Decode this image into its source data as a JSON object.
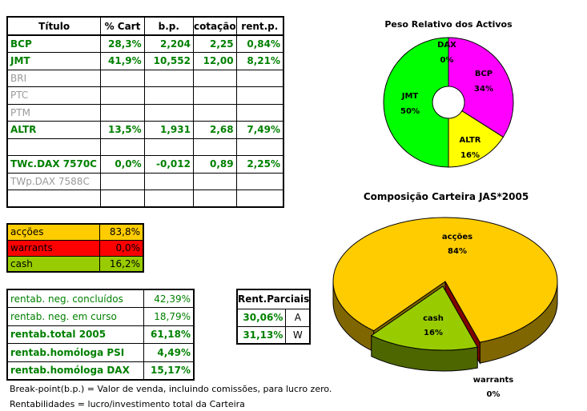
{
  "holdings": {
    "headers": [
      "Título",
      "% Cart",
      "b.p.",
      "cotação",
      "rent.p."
    ],
    "rows": [
      {
        "title": "BCP",
        "pct": "28,3%",
        "bp": "2,204",
        "price": "2,25",
        "rent": "0,84%",
        "style": "active"
      },
      {
        "title": "JMT",
        "pct": "41,9%",
        "bp": "10,552",
        "price": "12,00",
        "rent": "8,21%",
        "style": "active"
      },
      {
        "title": "BRI",
        "pct": "",
        "bp": "",
        "price": "",
        "rent": "",
        "style": "inactive"
      },
      {
        "title": "PTC",
        "pct": "",
        "bp": "",
        "price": "",
        "rent": "",
        "style": "inactive"
      },
      {
        "title": "PTM",
        "pct": "",
        "bp": "",
        "price": "",
        "rent": "",
        "style": "inactive"
      },
      {
        "title": "ALTR",
        "pct": "13,5%",
        "bp": "1,931",
        "price": "2,68",
        "rent": "7,49%",
        "style": "active"
      },
      {
        "title": "",
        "pct": "",
        "bp": "",
        "price": "",
        "rent": "",
        "style": "empty"
      },
      {
        "title": "TWc.DAX 7570C",
        "pct": "0,0%",
        "bp": "-0,012",
        "price": "0,89",
        "rent": "2,25%",
        "style": "active"
      },
      {
        "title": "TWp.DAX 7588C",
        "pct": "",
        "bp": "",
        "price": "",
        "rent": "",
        "style": "inactive"
      },
      {
        "title": "",
        "pct": "",
        "bp": "",
        "price": "",
        "rent": "",
        "style": "empty"
      }
    ]
  },
  "allocation": [
    {
      "label": "acções",
      "value": "83,8%",
      "color": "#ffcc00"
    },
    {
      "label": "warrants",
      "value": "0,0%",
      "color": "#ff0000"
    },
    {
      "label": "cash",
      "value": "16,2%",
      "color": "#99cc00"
    }
  ],
  "returns": [
    {
      "label": "rentab. neg. concluídos",
      "value": "42,39%",
      "bold": false
    },
    {
      "label": "rentab. neg. em curso",
      "value": "18,79%",
      "bold": false
    },
    {
      "label": "rentab.total 2005",
      "value": "61,18%",
      "bold": true
    },
    {
      "label": "rentab.homóloga PSI",
      "value": "4,49%",
      "bold": true
    },
    {
      "label": "rentab.homóloga DAX",
      "value": "15,17%",
      "bold": true
    }
  ],
  "partial": {
    "title": "Rent.Parciais",
    "rows": [
      {
        "value": "30,06%",
        "tag": "A"
      },
      {
        "value": "31,13%",
        "tag": "W"
      }
    ]
  },
  "notes": [
    "Break-point(b.p.) = Valor de venda, incluindo comissões, para lucro zero.",
    "Rentabilidades = lucro/investimento total da Carteira"
  ],
  "chart_data": [
    {
      "type": "pie",
      "variant": "doughnut",
      "title": "Peso Relativo dos Activos",
      "slices": [
        {
          "label": "BCP",
          "value": 34,
          "display": "34%",
          "color": "#ff00ff"
        },
        {
          "label": "ALTR",
          "value": 16,
          "display": "16%",
          "color": "#ffff00"
        },
        {
          "label": "JMT",
          "value": 50,
          "display": "50%",
          "color": "#00ff00"
        },
        {
          "label": "DAX",
          "value": 0,
          "display": "0%",
          "color": "#000080"
        }
      ]
    },
    {
      "type": "pie",
      "variant": "3d-exploded",
      "title": "Composição Carteira JAS*2005",
      "slices": [
        {
          "label": "acções",
          "value": 84,
          "display": "84%",
          "color": "#ffcc00",
          "side": "#806600"
        },
        {
          "label": "cash",
          "value": 16,
          "display": "16%",
          "color": "#99cc00",
          "side": "#4d6600"
        },
        {
          "label": "warrants",
          "value": 0,
          "display": "0%",
          "color": "#ff0000",
          "side": "#800000"
        }
      ]
    }
  ]
}
